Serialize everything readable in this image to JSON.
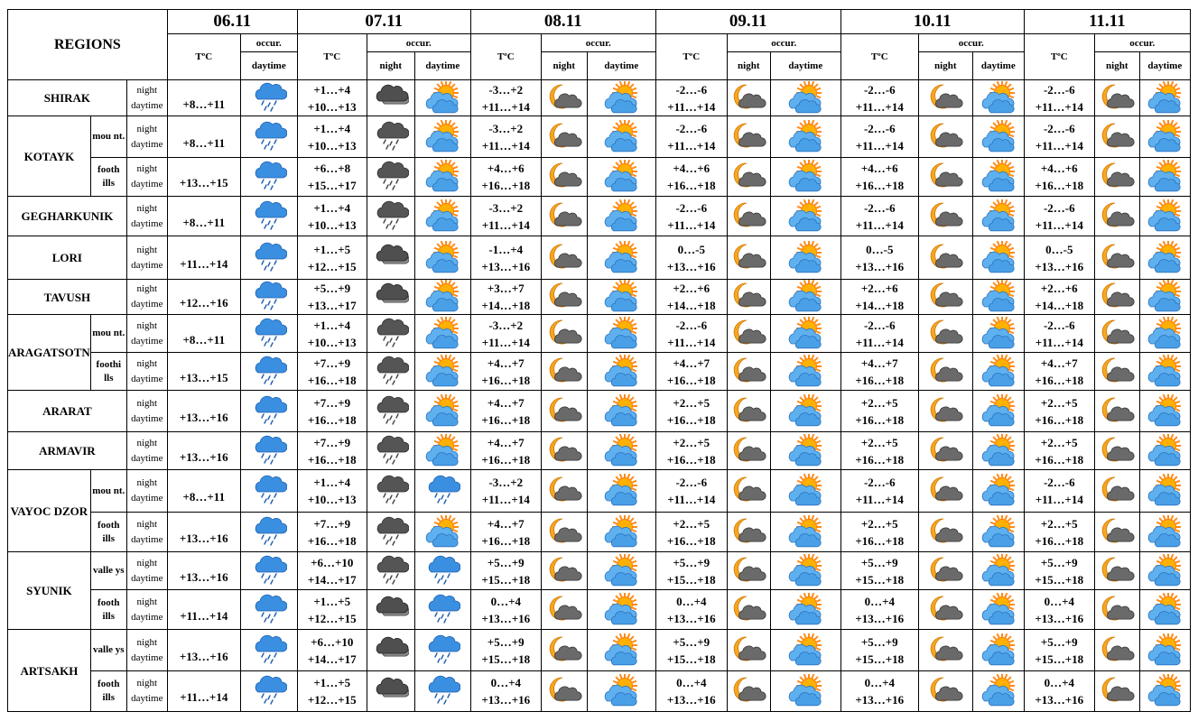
{
  "header": {
    "regions_label": "REGIONS",
    "temp_label": "TºC",
    "occur_label": "occur.",
    "night_label": "night",
    "day_label": "daytime",
    "dates": [
      "06.11",
      "07.11",
      "08.11",
      "09.11",
      "10.11",
      "11.11"
    ]
  },
  "rows": [
    {
      "region": "SHIRAK",
      "sub": "",
      "night": "night",
      "day": "daytime",
      "d1": {
        "t": "+8…+11",
        "icon": "rain-cloud-icon"
      },
      "days": [
        {
          "tn": "+1…+4",
          "td": "+10…+13",
          "in": "dark-cloud-icon",
          "id": "sun-cloud-icon"
        },
        {
          "tn": "-3…+2",
          "td": "+11…+14",
          "in": "moon-cloud-icon",
          "id": "sun-cloud-icon"
        },
        {
          "tn": "-2…-6",
          "td": "+11…+14",
          "in": "moon-cloud-icon",
          "id": "sun-cloud-icon"
        },
        {
          "tn": "-2…-6",
          "td": "+11…+14",
          "in": "moon-cloud-icon",
          "id": "sun-cloud-icon"
        },
        {
          "tn": "-2…-6",
          "td": "+11…+14",
          "in": "moon-cloud-icon",
          "id": "sun-cloud-icon"
        }
      ]
    },
    {
      "region": "KOTAYK",
      "sub": "mou nt.",
      "night": "night",
      "day": "daytime",
      "d1": {
        "t": "+8…+11",
        "icon": "rain-cloud-icon"
      },
      "days": [
        {
          "tn": "+1…+4",
          "td": "+10…+13",
          "in": "rain-dark-cloud-icon",
          "id": "sun-cloud-icon"
        },
        {
          "tn": "-3…+2",
          "td": "+11…+14",
          "in": "moon-cloud-icon",
          "id": "sun-cloud-icon"
        },
        {
          "tn": "-2…-6",
          "td": "+11…+14",
          "in": "moon-cloud-icon",
          "id": "sun-cloud-icon"
        },
        {
          "tn": "-2…-6",
          "td": "+11…+14",
          "in": "moon-cloud-icon",
          "id": "sun-cloud-icon"
        },
        {
          "tn": "-2…-6",
          "td": "+11…+14",
          "in": "moon-cloud-icon",
          "id": "sun-cloud-icon"
        }
      ]
    },
    {
      "region": "",
      "sub": "footh ills",
      "night": "night",
      "day": "daytime",
      "d1": {
        "t": "+13…+15",
        "icon": "rain-cloud-icon"
      },
      "days": [
        {
          "tn": "+6…+8",
          "td": "+15…+17",
          "in": "rain-dark-cloud-icon",
          "id": "sun-cloud-icon"
        },
        {
          "tn": "+4…+6",
          "td": "+16…+18",
          "in": "moon-cloud-icon",
          "id": "sun-cloud-icon"
        },
        {
          "tn": "+4…+6",
          "td": "+16…+18",
          "in": "moon-cloud-icon",
          "id": "sun-cloud-icon"
        },
        {
          "tn": "+4…+6",
          "td": "+16…+18",
          "in": "moon-cloud-icon",
          "id": "sun-cloud-icon"
        },
        {
          "tn": "+4…+6",
          "td": "+16…+18",
          "in": "moon-cloud-icon",
          "id": "sun-cloud-icon"
        }
      ]
    },
    {
      "region": "GEGHARKUNIK",
      "sub": "",
      "night": "night",
      "day": "daytime",
      "d1": {
        "t": "+8…+11",
        "icon": "rain-cloud-icon"
      },
      "days": [
        {
          "tn": "+1…+4",
          "td": "+10…+13",
          "in": "rain-dark-cloud-icon",
          "id": "sun-cloud-icon"
        },
        {
          "tn": "-3…+2",
          "td": "+11…+14",
          "in": "moon-cloud-icon",
          "id": "sun-cloud-icon"
        },
        {
          "tn": "-2…-6",
          "td": "+11…+14",
          "in": "moon-cloud-icon",
          "id": "sun-cloud-icon"
        },
        {
          "tn": "-2…-6",
          "td": "+11…+14",
          "in": "moon-cloud-icon",
          "id": "sun-cloud-icon"
        },
        {
          "tn": "-2…-6",
          "td": "+11…+14",
          "in": "moon-cloud-icon",
          "id": "sun-cloud-icon"
        }
      ]
    },
    {
      "region": "LORI",
      "sub": "",
      "night": "night",
      "day": "daytime",
      "d1": {
        "t": "+11…+14",
        "icon": "rain-cloud-icon"
      },
      "days": [
        {
          "tn": "+1…+5",
          "td": "+12…+15",
          "in": "dark-cloud-icon",
          "id": "sun-cloud-icon"
        },
        {
          "tn": "-1…+4",
          "td": "+13…+16",
          "in": "moon-cloud-icon",
          "id": "sun-cloud-icon"
        },
        {
          "tn": "0…-5",
          "td": "+13…+16",
          "in": "moon-cloud-icon",
          "id": "sun-cloud-icon"
        },
        {
          "tn": "0…-5",
          "td": "+13…+16",
          "in": "moon-cloud-icon",
          "id": "sun-cloud-icon"
        },
        {
          "tn": "0…-5",
          "td": "+13…+16",
          "in": "moon-cloud-icon",
          "id": "sun-cloud-icon"
        }
      ]
    },
    {
      "region": "TAVUSH",
      "sub": "",
      "night": "night",
      "day": "daytime",
      "d1": {
        "t": "+12…+16",
        "icon": "rain-cloud-icon"
      },
      "days": [
        {
          "tn": "+5…+9",
          "td": "+13…+17",
          "in": "dark-cloud-icon",
          "id": "sun-cloud-icon"
        },
        {
          "tn": "+3…+7",
          "td": "+14…+18",
          "in": "moon-cloud-icon",
          "id": "sun-cloud-icon"
        },
        {
          "tn": "+2…+6",
          "td": "+14…+18",
          "in": "moon-cloud-icon",
          "id": "sun-cloud-icon"
        },
        {
          "tn": "+2…+6",
          "td": "+14…+18",
          "in": "moon-cloud-icon",
          "id": "sun-cloud-icon"
        },
        {
          "tn": "+2…+6",
          "td": "+14…+18",
          "in": "moon-cloud-icon",
          "id": "sun-cloud-icon"
        }
      ]
    },
    {
      "region": "ARAGATSOTN",
      "sub": "mou nt.",
      "night": "night",
      "day": "daytime",
      "d1": {
        "t": "+8…+11",
        "icon": "rain-cloud-icon"
      },
      "days": [
        {
          "tn": "+1…+4",
          "td": "+10…+13",
          "in": "rain-dark-cloud-icon",
          "id": "sun-cloud-icon"
        },
        {
          "tn": "-3…+2",
          "td": "+11…+14",
          "in": "moon-cloud-icon",
          "id": "sun-cloud-icon"
        },
        {
          "tn": "-2…-6",
          "td": "+11…+14",
          "in": "moon-cloud-icon",
          "id": "sun-cloud-icon"
        },
        {
          "tn": "-2…-6",
          "td": "+11…+14",
          "in": "moon-cloud-icon",
          "id": "sun-cloud-icon"
        },
        {
          "tn": "-2…-6",
          "td": "+11…+14",
          "in": "moon-cloud-icon",
          "id": "sun-cloud-icon"
        }
      ]
    },
    {
      "region": "",
      "sub": "foothi lls",
      "night": "night",
      "day": "daytime",
      "d1": {
        "t": "+13…+15",
        "icon": "rain-cloud-icon"
      },
      "days": [
        {
          "tn": "+7…+9",
          "td": "+16…+18",
          "in": "rain-dark-cloud-icon",
          "id": "sun-cloud-icon"
        },
        {
          "tn": "+4…+7",
          "td": "+16…+18",
          "in": "moon-cloud-icon",
          "id": "sun-cloud-icon"
        },
        {
          "tn": "+4…+7",
          "td": "+16…+18",
          "in": "moon-cloud-icon",
          "id": "sun-cloud-icon"
        },
        {
          "tn": "+4…+7",
          "td": "+16…+18",
          "in": "moon-cloud-icon",
          "id": "sun-cloud-icon"
        },
        {
          "tn": "+4…+7",
          "td": "+16…+18",
          "in": "moon-cloud-icon",
          "id": "sun-cloud-icon"
        }
      ]
    },
    {
      "region": "ARARAT",
      "sub": "",
      "night": "night",
      "day": "daytime",
      "d1": {
        "t": "+13…+16",
        "icon": "rain-cloud-icon"
      },
      "days": [
        {
          "tn": "+7…+9",
          "td": "+16…+18",
          "in": "rain-dark-cloud-icon",
          "id": "sun-cloud-icon"
        },
        {
          "tn": "+4…+7",
          "td": "+16…+18",
          "in": "moon-cloud-icon",
          "id": "sun-cloud-icon"
        },
        {
          "tn": "+2…+5",
          "td": "+16…+18",
          "in": "moon-cloud-icon",
          "id": "sun-cloud-icon"
        },
        {
          "tn": "+2…+5",
          "td": "+16…+18",
          "in": "moon-cloud-icon",
          "id": "sun-cloud-icon"
        },
        {
          "tn": "+2…+5",
          "td": "+16…+18",
          "in": "moon-cloud-icon",
          "id": "sun-cloud-icon"
        }
      ]
    },
    {
      "region": "ARMAVIR",
      "sub": "",
      "night": "night",
      "day": "daytime",
      "d1": {
        "t": "+13…+16",
        "icon": "rain-cloud-icon"
      },
      "days": [
        {
          "tn": "+7…+9",
          "td": "+16…+18",
          "in": "rain-dark-cloud-icon",
          "id": "sun-cloud-icon"
        },
        {
          "tn": "+4…+7",
          "td": "+16…+18",
          "in": "moon-cloud-icon",
          "id": "sun-cloud-icon"
        },
        {
          "tn": "+2…+5",
          "td": "+16…+18",
          "in": "moon-cloud-icon",
          "id": "sun-cloud-icon"
        },
        {
          "tn": "+2…+5",
          "td": "+16…+18",
          "in": "moon-cloud-icon",
          "id": "sun-cloud-icon"
        },
        {
          "tn": "+2…+5",
          "td": "+16…+18",
          "in": "moon-cloud-icon",
          "id": "sun-cloud-icon"
        }
      ]
    },
    {
      "region": "VAYOC DZOR",
      "sub": "mou nt.",
      "night": "night",
      "day": "daytime",
      "d1": {
        "t": "+8…+11",
        "icon": "rain-cloud-icon"
      },
      "days": [
        {
          "tn": "+1…+4",
          "td": "+10…+13",
          "in": "rain-dark-cloud-icon",
          "id": "rain-cloud-icon"
        },
        {
          "tn": "-3…+2",
          "td": "+11…+14",
          "in": "moon-cloud-icon",
          "id": "sun-cloud-icon"
        },
        {
          "tn": "-2…-6",
          "td": "+11…+14",
          "in": "moon-cloud-icon",
          "id": "sun-cloud-icon"
        },
        {
          "tn": "-2…-6",
          "td": "+11…+14",
          "in": "moon-cloud-icon",
          "id": "sun-cloud-icon"
        },
        {
          "tn": "-2…-6",
          "td": "+11…+14",
          "in": "moon-cloud-icon",
          "id": "sun-cloud-icon"
        }
      ]
    },
    {
      "region": "",
      "sub": "footh ills",
      "night": "night",
      "day": "daytime",
      "d1": {
        "t": "+13…+16",
        "icon": "rain-cloud-icon"
      },
      "days": [
        {
          "tn": "+7…+9",
          "td": "+16…+18",
          "in": "rain-dark-cloud-icon",
          "id": "sun-cloud-icon"
        },
        {
          "tn": "+4…+7",
          "td": "+16…+18",
          "in": "moon-cloud-icon",
          "id": "sun-cloud-icon"
        },
        {
          "tn": "+2…+5",
          "td": "+16…+18",
          "in": "moon-cloud-icon",
          "id": "sun-cloud-icon"
        },
        {
          "tn": "+2…+5",
          "td": "+16…+18",
          "in": "moon-cloud-icon",
          "id": "sun-cloud-icon"
        },
        {
          "tn": "+2…+5",
          "td": "+16…+18",
          "in": "moon-cloud-icon",
          "id": "sun-cloud-icon"
        }
      ]
    },
    {
      "region": "SYUNIK",
      "sub": "valle ys",
      "night": "night",
      "day": "daytime",
      "d1": {
        "t": "+13…+16",
        "icon": "rain-cloud-icon"
      },
      "days": [
        {
          "tn": "+6…+10",
          "td": "+14…+17",
          "in": "rain-dark-cloud-icon",
          "id": "rain-cloud-icon"
        },
        {
          "tn": "+5…+9",
          "td": "+15…+18",
          "in": "moon-cloud-icon",
          "id": "sun-cloud-icon"
        },
        {
          "tn": "+5…+9",
          "td": "+15…+18",
          "in": "moon-cloud-icon",
          "id": "sun-cloud-icon"
        },
        {
          "tn": "+5…+9",
          "td": "+15…+18",
          "in": "moon-cloud-icon",
          "id": "sun-cloud-icon"
        },
        {
          "tn": "+5…+9",
          "td": "+15…+18",
          "in": "moon-cloud-icon",
          "id": "sun-cloud-icon"
        }
      ]
    },
    {
      "region": "",
      "sub": "footh ills",
      "night": "night",
      "day": "daytime",
      "d1": {
        "t": "+11…+14",
        "icon": "rain-cloud-icon"
      },
      "days": [
        {
          "tn": "+1…+5",
          "td": "+12…+15",
          "in": "dark-cloud-icon",
          "id": "rain-cloud-icon"
        },
        {
          "tn": "0…+4",
          "td": "+13…+16",
          "in": "moon-cloud-icon",
          "id": "sun-cloud-icon"
        },
        {
          "tn": "0…+4",
          "td": "+13…+16",
          "in": "moon-cloud-icon",
          "id": "sun-cloud-icon"
        },
        {
          "tn": "0…+4",
          "td": "+13…+16",
          "in": "moon-cloud-icon",
          "id": "sun-cloud-icon"
        },
        {
          "tn": "0…+4",
          "td": "+13…+16",
          "in": "moon-cloud-icon",
          "id": "sun-cloud-icon"
        }
      ]
    },
    {
      "region": "ARTSAKH",
      "sub": "valle ys",
      "night": "night",
      "day": "daytime",
      "d1": {
        "t": "+13…+16",
        "icon": "rain-cloud-icon"
      },
      "days": [
        {
          "tn": "+6…+10",
          "td": "+14…+17",
          "in": "dark-cloud-icon",
          "id": "rain-cloud-icon"
        },
        {
          "tn": "+5…+9",
          "td": "+15…+18",
          "in": "moon-cloud-icon",
          "id": "sun-cloud-icon"
        },
        {
          "tn": "+5…+9",
          "td": "+15…+18",
          "in": "moon-cloud-icon",
          "id": "sun-cloud-icon"
        },
        {
          "tn": "+5…+9",
          "td": "+15…+18",
          "in": "moon-cloud-icon",
          "id": "sun-cloud-icon"
        },
        {
          "tn": "+5…+9",
          "td": "+15…+18",
          "in": "moon-cloud-icon",
          "id": "sun-cloud-icon"
        }
      ]
    },
    {
      "region": "",
      "sub": "footh ills",
      "night": "night",
      "day": "daytime",
      "d1": {
        "t": "+11…+14",
        "icon": "rain-cloud-icon"
      },
      "days": [
        {
          "tn": "+1…+5",
          "td": "+12…+15",
          "in": "dark-cloud-icon",
          "id": "rain-cloud-icon"
        },
        {
          "tn": "0…+4",
          "td": "+13…+16",
          "in": "moon-cloud-icon",
          "id": "sun-cloud-icon"
        },
        {
          "tn": "0…+4",
          "td": "+13…+16",
          "in": "moon-cloud-icon",
          "id": "sun-cloud-icon"
        },
        {
          "tn": "0…+4",
          "td": "+13…+16",
          "in": "moon-cloud-icon",
          "id": "sun-cloud-icon"
        },
        {
          "tn": "0…+4",
          "td": "+13…+16",
          "in": "moon-cloud-icon",
          "id": "sun-cloud-icon"
        }
      ]
    }
  ]
}
